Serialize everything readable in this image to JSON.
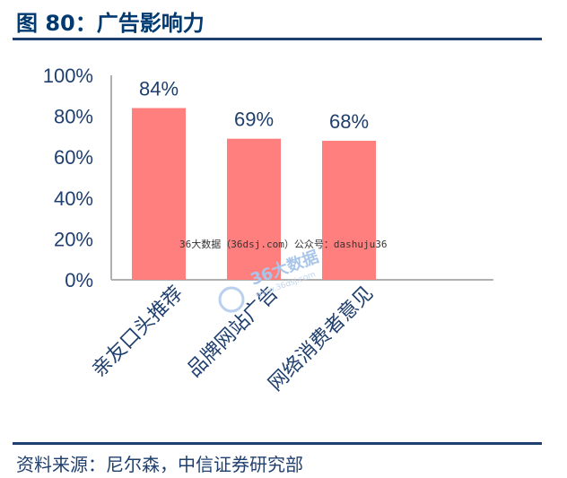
{
  "title": "图 80：广告影响力",
  "source": "资料来源：尼尔森，中信证券研究部",
  "watermark": {
    "text": "36大数据（36dsj.com）公众号：dashuju36",
    "logo_text": "36大数据",
    "logo_url": "www.36dsj.com"
  },
  "colors": {
    "bar": "#ff7f7f",
    "text": "#1f3f6e",
    "rule": "#1f3f6e",
    "axis": "#b0b0b0"
  },
  "chart_data": {
    "type": "bar",
    "categories": [
      "亲友口头推荐",
      "品牌网站广告",
      "网络消费者意见"
    ],
    "values": [
      84,
      69,
      68
    ],
    "data_labels": [
      "84%",
      "69%",
      "68%"
    ],
    "title": "",
    "xlabel": "",
    "ylabel": "",
    "ylim": [
      0,
      100
    ],
    "yticks": [
      0,
      20,
      40,
      60,
      80,
      100
    ],
    "ytick_labels": [
      "0%",
      "20%",
      "40%",
      "60%",
      "80%",
      "100%"
    ],
    "grid": false,
    "legend": "none"
  }
}
